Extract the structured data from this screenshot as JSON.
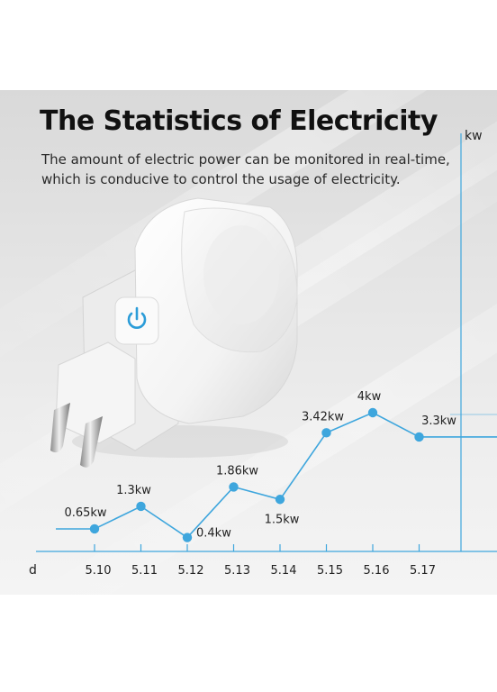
{
  "title": "The Statistics of Electricity",
  "subtitle_lines": [
    "The amount of electric power can be monitored in real-time,",
    "which is conducive to control the usage of electricity."
  ],
  "colors": {
    "accent": "#3ea6dd",
    "power_button": "#2b9cd8"
  },
  "product": {
    "icon": "power-icon"
  },
  "chart_data": {
    "type": "line",
    "x_axis_label": "d",
    "y_axis_label": "kw",
    "categories": [
      "5.10",
      "5.11",
      "5.12",
      "5.13",
      "5.14",
      "5.15",
      "5.16",
      "5.17"
    ],
    "series": [
      {
        "values": [
          0.65,
          1.3,
          0.4,
          1.86,
          1.5,
          3.42,
          4.0,
          3.3
        ]
      }
    ],
    "data_labels": [
      "0.65kw",
      "1.3kw",
      "0.4kw",
      "1.86kw",
      "1.5kw",
      "3.42kw",
      "4kw",
      "3.3kw"
    ],
    "ylim": [
      0,
      4.5
    ],
    "grid": true
  }
}
